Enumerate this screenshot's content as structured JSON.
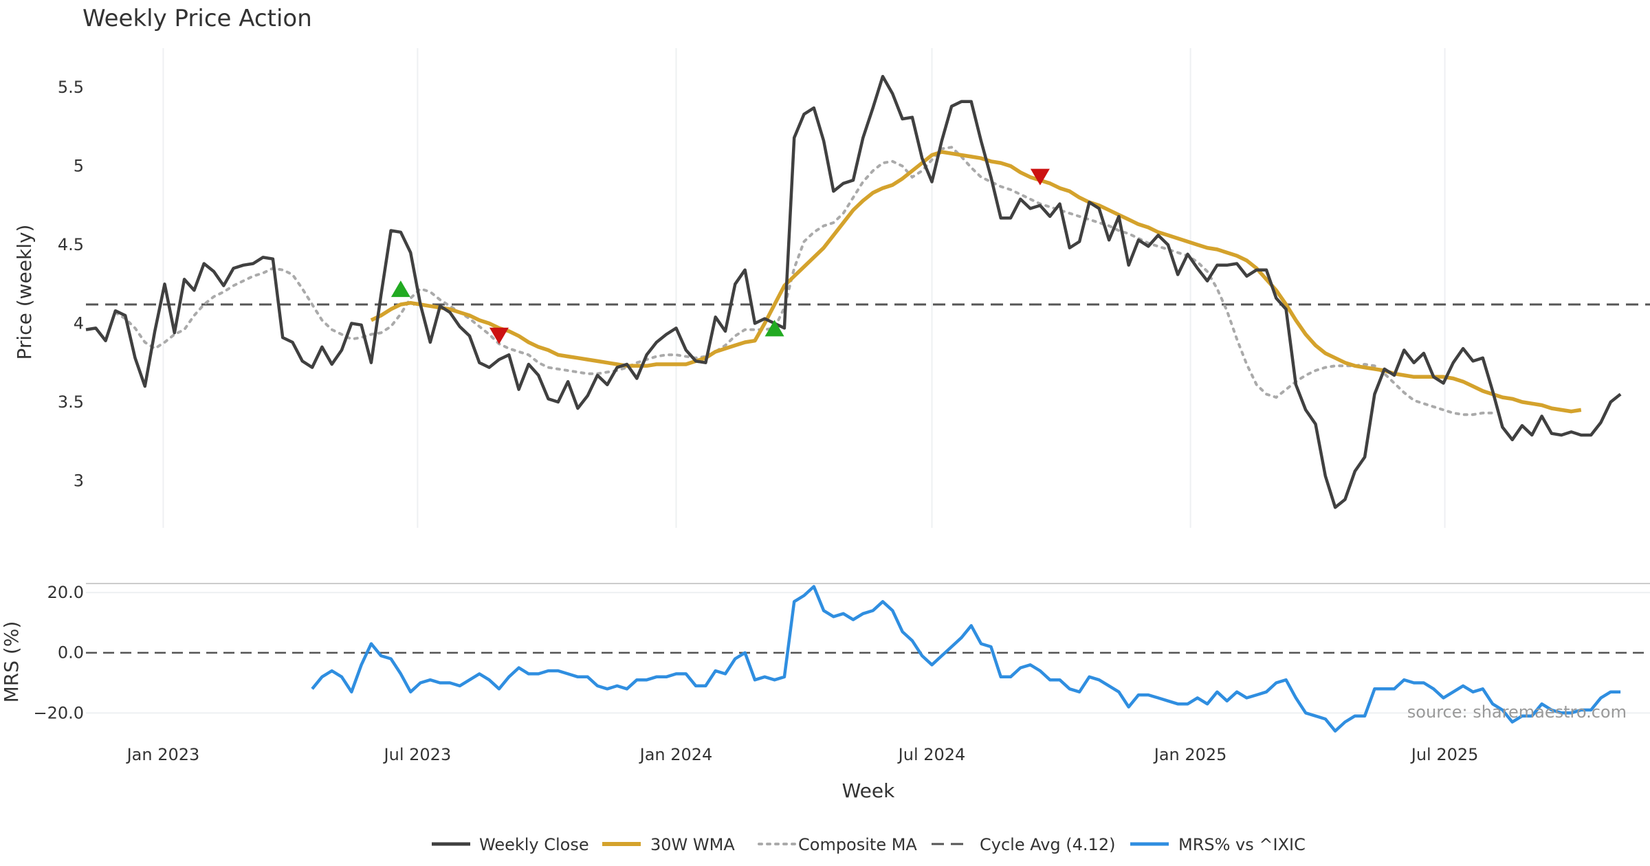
{
  "chart_data": {
    "type": "line",
    "title": "Weekly Price Action",
    "xlabel": "Week",
    "x_ticks": [
      "Jan 2023",
      "Jul 2023",
      "Jan 2024",
      "Jul 2024",
      "Jan 2025",
      "Jul 2025"
    ],
    "x_range": [
      "2022-11-07",
      "2025-11-24"
    ],
    "source": "source: sharemaestro.com",
    "colors": {
      "close": "#404040",
      "wma": "#d4a22c",
      "composite": "#aaaaaa",
      "cycle": "#555555",
      "mrs": "#2f8ee0",
      "buy": "#22aa22",
      "sell": "#cc1111"
    },
    "price_panel": {
      "ylabel": "Price (weekly)",
      "ylim": [
        2.7,
        5.75
      ],
      "y_ticks": [
        3,
        3.5,
        4,
        4.5,
        5,
        5.5
      ],
      "y_tick_labels": [
        "3",
        "3.5",
        "4",
        "4.5",
        "5",
        "5.5"
      ],
      "cycle_avg": 4.12,
      "start_date": "2022-11-07",
      "close": [
        3.96,
        3.97,
        3.89,
        4.08,
        4.05,
        3.78,
        3.6,
        3.95,
        4.25,
        3.94,
        4.28,
        4.21,
        4.38,
        4.33,
        4.24,
        4.35,
        4.37,
        4.38,
        4.42,
        4.41,
        3.91,
        3.88,
        3.76,
        3.72,
        3.85,
        3.74,
        3.83,
        4.0,
        3.99,
        3.75,
        4.18,
        4.59,
        4.58,
        4.45,
        4.12,
        3.88,
        4.11,
        4.07,
        3.98,
        3.92,
        3.75,
        3.72,
        3.77,
        3.8,
        3.58,
        3.74,
        3.67,
        3.52,
        3.5,
        3.63,
        3.46,
        3.54,
        3.67,
        3.61,
        3.72,
        3.74,
        3.65,
        3.8,
        3.88,
        3.93,
        3.97,
        3.83,
        3.76,
        3.75,
        4.04,
        3.95,
        4.25,
        4.34,
        4.0,
        4.03,
        4.0,
        3.97,
        5.18,
        5.33,
        5.37,
        5.16,
        4.84,
        4.89,
        4.91,
        5.18,
        5.37,
        5.57,
        5.46,
        5.3,
        5.31,
        5.05,
        4.9,
        5.16,
        5.38,
        5.41,
        5.41,
        5.16,
        4.93,
        4.67,
        4.67,
        4.79,
        4.73,
        4.75,
        4.68,
        4.76,
        4.48,
        4.52,
        4.77,
        4.73,
        4.53,
        4.68,
        4.37,
        4.53,
        4.49,
        4.56,
        4.5,
        4.31,
        4.44,
        4.35,
        4.27,
        4.37,
        4.37,
        4.38,
        4.3,
        4.34,
        4.34,
        4.16,
        4.09,
        3.61,
        3.45,
        3.36,
        3.03,
        2.83,
        2.88,
        3.06,
        3.15,
        3.55,
        3.71,
        3.67,
        3.83,
        3.75,
        3.81,
        3.66,
        3.62,
        3.75,
        3.84,
        3.76,
        3.78,
        3.57,
        3.34,
        3.26,
        3.35,
        3.29,
        3.41,
        3.3,
        3.29,
        3.31,
        3.29,
        3.29,
        3.37,
        3.5,
        3.55
      ],
      "wma_start_index": 29,
      "wma": [
        4.02,
        4.05,
        4.09,
        4.12,
        4.13,
        4.12,
        4.11,
        4.1,
        4.09,
        4.07,
        4.05,
        4.02,
        4.0,
        3.97,
        3.95,
        3.92,
        3.88,
        3.85,
        3.83,
        3.8,
        3.79,
        3.78,
        3.77,
        3.76,
        3.75,
        3.74,
        3.73,
        3.73,
        3.73,
        3.74,
        3.74,
        3.74,
        3.74,
        3.76,
        3.78,
        3.82,
        3.84,
        3.86,
        3.88,
        3.89,
        4.0,
        4.12,
        4.24,
        4.3,
        4.36,
        4.42,
        4.48,
        4.56,
        4.64,
        4.72,
        4.78,
        4.83,
        4.86,
        4.88,
        4.92,
        4.97,
        5.02,
        5.07,
        5.09,
        5.08,
        5.07,
        5.06,
        5.05,
        5.03,
        5.02,
        5.0,
        4.96,
        4.93,
        4.91,
        4.89,
        4.86,
        4.84,
        4.8,
        4.77,
        4.75,
        4.72,
        4.69,
        4.66,
        4.63,
        4.61,
        4.58,
        4.56,
        4.54,
        4.52,
        4.5,
        4.48,
        4.47,
        4.45,
        4.43,
        4.4,
        4.35,
        4.28,
        4.21,
        4.12,
        4.02,
        3.93,
        3.86,
        3.81,
        3.78,
        3.75,
        3.73,
        3.72,
        3.71,
        3.7,
        3.68,
        3.67,
        3.66,
        3.66,
        3.66,
        3.66,
        3.65,
        3.63,
        3.6,
        3.57,
        3.55,
        3.53,
        3.52,
        3.5,
        3.49,
        3.48,
        3.46,
        3.45,
        3.44,
        3.45
      ],
      "composite_start_index": 3,
      "composite": [
        4.07,
        4.03,
        3.97,
        3.88,
        3.84,
        3.88,
        3.93,
        3.96,
        4.05,
        4.12,
        4.17,
        4.2,
        4.24,
        4.27,
        4.3,
        4.32,
        4.35,
        4.34,
        4.31,
        4.22,
        4.12,
        4.02,
        3.96,
        3.93,
        3.9,
        3.91,
        3.93,
        3.94,
        3.98,
        4.06,
        4.16,
        4.22,
        4.2,
        4.15,
        4.11,
        4.07,
        4.03,
        3.98,
        3.93,
        3.87,
        3.84,
        3.82,
        3.8,
        3.75,
        3.72,
        3.71,
        3.7,
        3.69,
        3.68,
        3.68,
        3.69,
        3.7,
        3.72,
        3.75,
        3.77,
        3.79,
        3.8,
        3.8,
        3.79,
        3.78,
        3.79,
        3.82,
        3.86,
        3.92,
        3.96,
        3.96,
        3.96,
        3.97,
        4.1,
        4.35,
        4.52,
        4.58,
        4.62,
        4.64,
        4.7,
        4.8,
        4.9,
        4.97,
        5.02,
        5.03,
        5.0,
        4.93,
        4.97,
        5.04,
        5.11,
        5.12,
        5.06,
        4.99,
        4.93,
        4.9,
        4.87,
        4.85,
        4.82,
        4.79,
        4.76,
        4.74,
        4.72,
        4.7,
        4.68,
        4.66,
        4.64,
        4.62,
        4.59,
        4.57,
        4.54,
        4.51,
        4.49,
        4.47,
        4.45,
        4.43,
        4.39,
        4.33,
        4.22,
        4.08,
        3.9,
        3.74,
        3.61,
        3.55,
        3.53,
        3.58,
        3.63,
        3.67,
        3.7,
        3.72,
        3.73,
        3.73,
        3.73,
        3.74,
        3.73,
        3.68,
        3.62,
        3.56,
        3.51,
        3.49,
        3.47,
        3.45,
        3.43,
        3.42,
        3.42,
        3.43,
        3.43
      ],
      "buy_signals": [
        {
          "date": "2023-06-19",
          "price": 4.22
        },
        {
          "date": "2024-03-11",
          "price": 3.97
        }
      ],
      "sell_signals": [
        {
          "date": "2023-08-28",
          "price": 3.92
        },
        {
          "date": "2024-09-16",
          "price": 4.93
        }
      ]
    },
    "mrs_panel": {
      "ylabel": "MRS (%)",
      "ylim": [
        -27,
        23
      ],
      "y_ticks": [
        20,
        0,
        -20
      ],
      "y_tick_labels": [
        "20.0",
        "0.0",
        "−20.0"
      ],
      "zero_line": 0,
      "start_date": "2023-04-17",
      "values": [
        -12,
        -8,
        -6,
        -8,
        -13,
        -4,
        3,
        -1,
        -2,
        -7,
        -13,
        -10,
        -9,
        -10,
        -10,
        -11,
        -9,
        -7,
        -9,
        -12,
        -8,
        -5,
        -7,
        -7,
        -6,
        -6,
        -7,
        -8,
        -8,
        -11,
        -12,
        -11,
        -12,
        -9,
        -9,
        -8,
        -8,
        -7,
        -7,
        -11,
        -11,
        -6,
        -7,
        -2,
        0,
        -9,
        -8,
        -9,
        -8,
        17,
        19,
        22,
        14,
        12,
        13,
        11,
        13,
        14,
        17,
        14,
        7,
        4,
        -1,
        -4,
        -1,
        2,
        5,
        9,
        3,
        2,
        -8,
        -8,
        -5,
        -4,
        -6,
        -9,
        -9,
        -12,
        -13,
        -8,
        -9,
        -11,
        -13,
        -18,
        -14,
        -14,
        -15,
        -16,
        -17,
        -17,
        -15,
        -17,
        -13,
        -16,
        -13,
        -15,
        -14,
        -13,
        -10,
        -9,
        -15,
        -20,
        -21,
        -22,
        -26,
        -23,
        -21,
        -21,
        -12,
        -12,
        -12,
        -9,
        -10,
        -10,
        -12,
        -15,
        -13,
        -11,
        -13,
        -12,
        -17,
        -19,
        -23,
        -21,
        -21,
        -17,
        -19,
        -20,
        -20,
        -19,
        -19,
        -15,
        -13,
        -13
      ]
    },
    "legend": {
      "close_label": "Weekly Close",
      "wma_label": "30W WMA",
      "composite_label": "Composite MA",
      "cycle_label": "Cycle Avg (4.12)",
      "mrs_label": "MRS% vs ^IXIC",
      "placement": "bottom-center"
    }
  }
}
